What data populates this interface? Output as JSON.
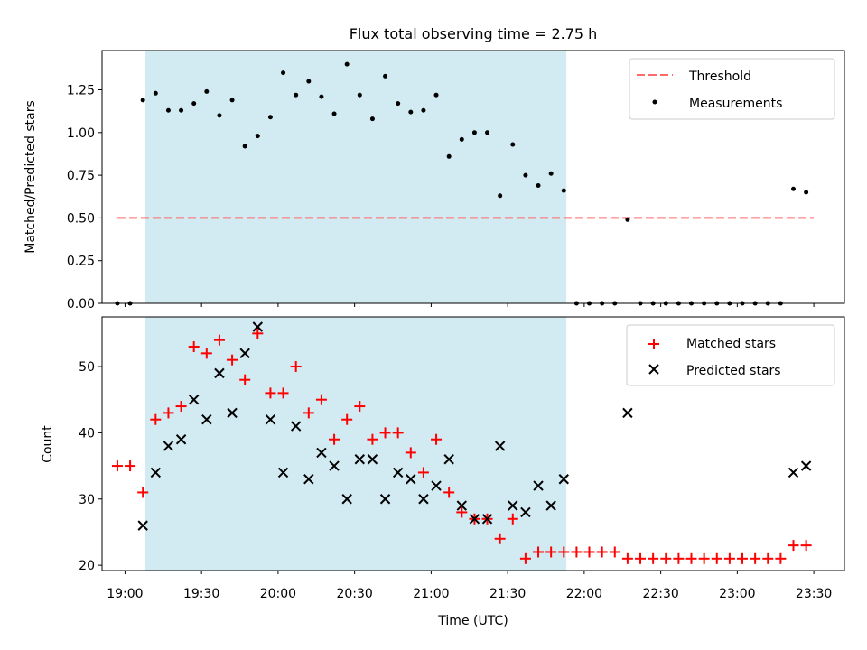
{
  "chart_data": [
    {
      "type": "scatter",
      "title": "Flux total observing time = 2.75 h",
      "xlabel": "",
      "ylabel": "Matched/Predicted stars",
      "xlim": [
        "18:51",
        "23:42"
      ],
      "ylim": [
        0,
        1.48
      ],
      "yticks": [
        0.0,
        0.25,
        0.5,
        0.75,
        1.0,
        1.25
      ],
      "ytick_labels": [
        "0.00",
        "0.25",
        "0.50",
        "0.75",
        "1.00",
        "1.25"
      ],
      "shaded_x_range": [
        "19:08",
        "21:53"
      ],
      "shaded_color": "#add8e6",
      "threshold": {
        "name": "Threshold",
        "y": 0.5,
        "x_range": [
          "18:57",
          "23:30"
        ],
        "color": "#ff6b6b"
      },
      "legend_position": "top-right",
      "series": [
        {
          "name": "Measurements",
          "color": "#000000",
          "marker": "dot",
          "x": [
            "18:57",
            "19:02",
            "19:07",
            "19:12",
            "19:17",
            "19:22",
            "19:27",
            "19:32",
            "19:37",
            "19:42",
            "19:47",
            "19:52",
            "19:57",
            "20:02",
            "20:07",
            "20:12",
            "20:17",
            "20:22",
            "20:27",
            "20:32",
            "20:37",
            "20:42",
            "20:47",
            "20:52",
            "20:57",
            "21:02",
            "21:07",
            "21:12",
            "21:17",
            "21:22",
            "21:27",
            "21:32",
            "21:37",
            "21:42",
            "21:47",
            "21:52",
            "21:57",
            "22:02",
            "22:07",
            "22:12",
            "22:17",
            "22:22",
            "22:27",
            "22:32",
            "22:37",
            "22:42",
            "22:47",
            "22:52",
            "22:57",
            "23:02",
            "23:07",
            "23:12",
            "23:17",
            "23:22",
            "23:27"
          ],
          "y": [
            0,
            0,
            1.19,
            1.23,
            1.13,
            1.13,
            1.17,
            1.24,
            1.1,
            1.19,
            0.92,
            0.98,
            1.09,
            1.35,
            1.22,
            1.3,
            1.21,
            1.11,
            1.4,
            1.22,
            1.08,
            1.33,
            1.17,
            1.12,
            1.13,
            1.22,
            0.86,
            0.96,
            1.0,
            1.0,
            0.63,
            0.93,
            0.75,
            0.69,
            0.76,
            0.66,
            0,
            0,
            0,
            0,
            0.49,
            0,
            0,
            0,
            0,
            0,
            0,
            0,
            0,
            0,
            0,
            0,
            0,
            0.67,
            0.65
          ]
        }
      ]
    },
    {
      "type": "scatter",
      "title": "",
      "xlabel": "Time (UTC)",
      "ylabel": "Count",
      "xlim": [
        "18:51",
        "23:42"
      ],
      "ylim": [
        19.2,
        57.5
      ],
      "yticks": [
        20,
        30,
        40,
        50
      ],
      "xticks": [
        "19:00",
        "19:30",
        "20:00",
        "20:30",
        "21:00",
        "21:30",
        "22:00",
        "22:30",
        "23:00",
        "23:30"
      ],
      "shaded_x_range": [
        "19:08",
        "21:53"
      ],
      "shaded_color": "#add8e6",
      "legend_position": "top-right",
      "series": [
        {
          "name": "Matched stars",
          "color": "#ff0000",
          "marker": "plus",
          "x": [
            "18:57",
            "19:02",
            "19:07",
            "19:12",
            "19:17",
            "19:22",
            "19:27",
            "19:32",
            "19:37",
            "19:42",
            "19:47",
            "19:52",
            "19:57",
            "20:02",
            "20:07",
            "20:12",
            "20:17",
            "20:22",
            "20:27",
            "20:32",
            "20:37",
            "20:42",
            "20:47",
            "20:52",
            "20:57",
            "21:02",
            "21:07",
            "21:12",
            "21:17",
            "21:22",
            "21:27",
            "21:32",
            "21:37",
            "21:42",
            "21:47",
            "21:52",
            "21:57",
            "22:02",
            "22:07",
            "22:12",
            "22:17",
            "22:22",
            "22:27",
            "22:32",
            "22:37",
            "22:42",
            "22:47",
            "22:52",
            "22:57",
            "23:02",
            "23:07",
            "23:12",
            "23:17",
            "23:22",
            "23:27"
          ],
          "y": [
            35,
            35,
            31,
            42,
            43,
            44,
            53,
            52,
            54,
            51,
            48,
            55,
            46,
            46,
            50,
            43,
            45,
            39,
            42,
            44,
            39,
            40,
            40,
            37,
            34,
            39,
            31,
            28,
            27,
            27,
            24,
            27,
            21,
            22,
            22,
            22,
            22,
            22,
            22,
            22,
            21,
            21,
            21,
            21,
            21,
            21,
            21,
            21,
            21,
            21,
            21,
            21,
            21,
            23,
            23
          ]
        },
        {
          "name": "Predicted stars",
          "color": "#000000",
          "marker": "x",
          "x": [
            "19:07",
            "19:12",
            "19:17",
            "19:22",
            "19:27",
            "19:32",
            "19:37",
            "19:42",
            "19:47",
            "19:52",
            "19:57",
            "20:02",
            "20:07",
            "20:12",
            "20:17",
            "20:22",
            "20:27",
            "20:32",
            "20:37",
            "20:42",
            "20:47",
            "20:52",
            "20:57",
            "21:02",
            "21:07",
            "21:12",
            "21:17",
            "21:22",
            "21:27",
            "21:32",
            "21:37",
            "21:42",
            "21:47",
            "21:52",
            "22:17",
            "23:22",
            "23:27"
          ],
          "y": [
            26,
            34,
            38,
            39,
            45,
            42,
            49,
            43,
            52,
            56,
            42,
            34,
            41,
            33,
            37,
            35,
            30,
            36,
            36,
            30,
            34,
            33,
            30,
            32,
            36,
            29,
            27,
            27,
            38,
            29,
            28,
            32,
            29,
            33,
            43,
            34,
            35
          ]
        }
      ]
    }
  ]
}
